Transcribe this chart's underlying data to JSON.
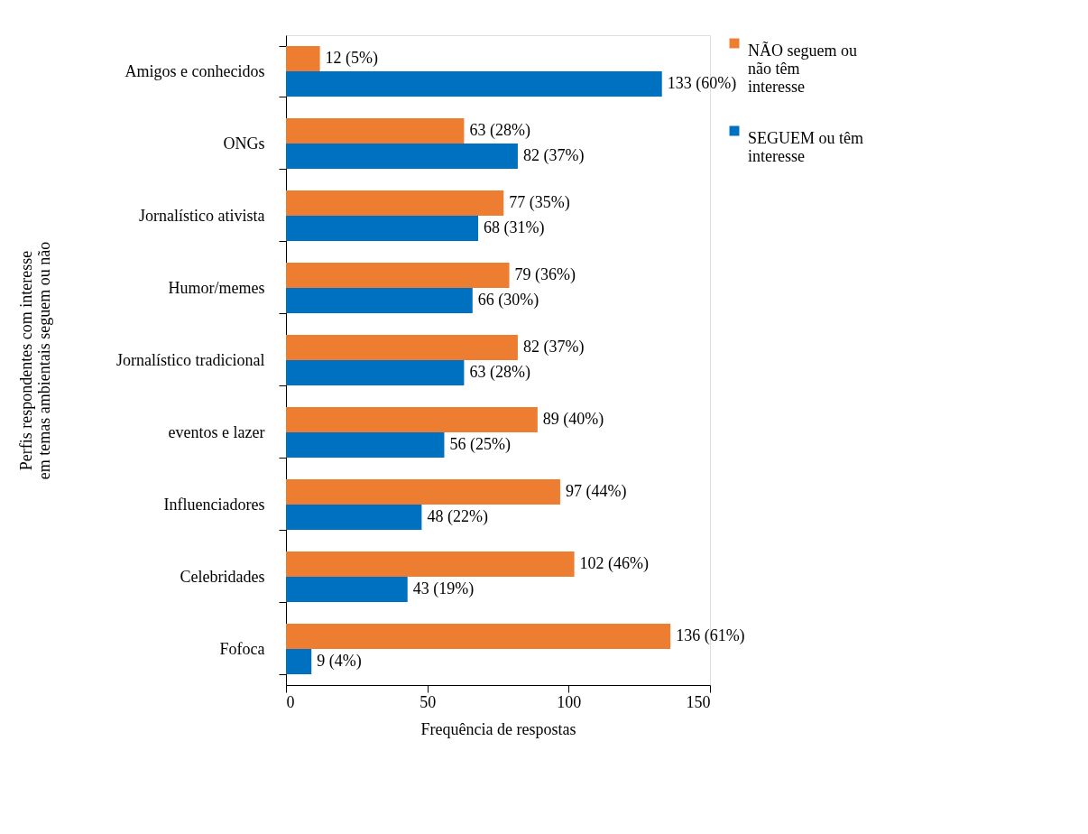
{
  "chart_data": {
    "type": "bar",
    "orientation": "horizontal",
    "xlabel": "Frequência de respostas",
    "ylabel": "Perfis respondentes com interesse em temas ambientais seguem ou não",
    "categories": [
      "Amigos e conhecidos",
      "ONGs",
      "Jornalístico ativista",
      "Humor/memes",
      "Jornalístico tradicional",
      "eventos e lazer",
      "Influenciadores",
      "Celebridades",
      "Fofoca"
    ],
    "series": [
      {
        "name": "NÃO seguem ou não têm interesse",
        "color": "#ed7d31",
        "values": [
          12,
          63,
          77,
          79,
          82,
          89,
          97,
          102,
          136
        ],
        "value_labels": [
          "12 (5%)",
          "63 (28%)",
          "77 (35%)",
          "79 (36%)",
          "82 (37%)",
          "89 (40%)",
          "97 (44%)",
          "102 (46%)",
          "136 (61%)"
        ]
      },
      {
        "name": "SEGUEM ou têm interesse",
        "color": "#0070c0",
        "values": [
          133,
          82,
          68,
          66,
          63,
          56,
          48,
          43,
          9
        ],
        "value_labels": [
          "133 (60%)",
          "82 (37%)",
          "68 (31%)",
          "66 (30%)",
          "63 (28%)",
          "56 (25%)",
          "48 (22%)",
          "43 (19%)",
          "9 (4%)"
        ]
      }
    ],
    "xlim": [
      0,
      150
    ],
    "xticks": [
      0,
      50,
      100,
      150
    ],
    "grid": false,
    "legend": "right"
  }
}
